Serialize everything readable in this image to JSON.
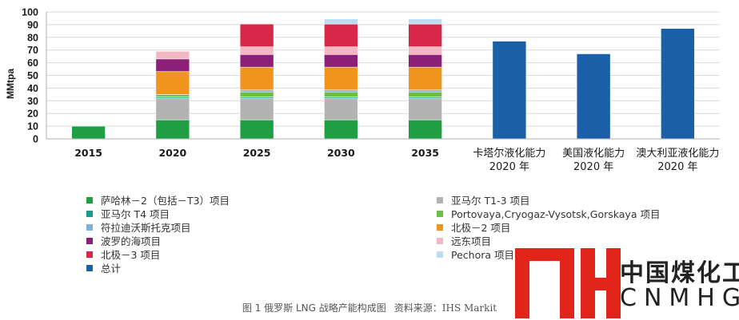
{
  "chart_data": {
    "type": "bar",
    "stacked": true,
    "ylabel": "MMtpa",
    "ylim": [
      0,
      100
    ],
    "yticks": [
      0,
      10,
      20,
      30,
      40,
      50,
      60,
      70,
      80,
      90,
      100
    ],
    "categories": [
      [
        "2015"
      ],
      [
        "2020"
      ],
      [
        "2025"
      ],
      [
        "2030"
      ],
      [
        "2035"
      ],
      [
        "卡塔尔液化能力",
        "2020 年"
      ],
      [
        "美国液化能力",
        "2020 年"
      ],
      [
        "澳大利亚液化能力",
        "2020 年"
      ]
    ],
    "series": [
      {
        "name": "萨哈林－2（包括－T3）项目",
        "color": "#1f9e44",
        "values": [
          10,
          15,
          15,
          15,
          15,
          0,
          0,
          0
        ]
      },
      {
        "name": "亚马尔 T1-3 项目",
        "color": "#b3b3b3",
        "values": [
          0,
          17,
          17,
          17,
          17,
          0,
          0,
          0
        ]
      },
      {
        "name": "亚马尔 T4 项目",
        "color": "#1a9a8c",
        "values": [
          0,
          1,
          1,
          1,
          1,
          0,
          0,
          0
        ]
      },
      {
        "name": "Portovaya,Cryogaz-Vysotsk,Gorskaya 项目",
        "color": "#6cbe45",
        "values": [
          0,
          2,
          4,
          4,
          4,
          0,
          0,
          0
        ]
      },
      {
        "name": "符拉迪沃斯托克项目",
        "color": "#7fb0dc",
        "values": [
          0,
          0,
          1.5,
          1.5,
          1.5,
          0,
          0,
          0
        ]
      },
      {
        "name": "北极－2 项目",
        "color": "#f0941e",
        "values": [
          0,
          18,
          18,
          18,
          18,
          0,
          0,
          0
        ]
      },
      {
        "name": "波罗的海项目",
        "color": "#8e1f78",
        "values": [
          0,
          10,
          10,
          10,
          10,
          0,
          0,
          0
        ]
      },
      {
        "name": "远东项目",
        "color": "#f4b6c0",
        "values": [
          0,
          6,
          6,
          6,
          6,
          0,
          0,
          0
        ]
      },
      {
        "name": "北极－3 项目",
        "color": "#d8284a",
        "values": [
          0,
          0,
          18,
          18,
          18,
          0,
          0,
          0
        ]
      },
      {
        "name": "Pechora 项目",
        "color": "#bcdcf0",
        "values": [
          0,
          0,
          0,
          4,
          4,
          0,
          0,
          0
        ]
      },
      {
        "name": "总计",
        "color": "#1b5fa8",
        "values": [
          0,
          0,
          0,
          0,
          0,
          77,
          67,
          87
        ]
      }
    ]
  },
  "legend": {
    "left": [
      {
        "label": "萨哈林－2（包括－T3）项目",
        "color": "#1f9e44"
      },
      {
        "label": "亚马尔 T4 项目",
        "color": "#1a9a8c"
      },
      {
        "label": "符拉迪沃斯托克项目",
        "color": "#7fb0dc"
      },
      {
        "label": "波罗的海项目",
        "color": "#8e1f78"
      },
      {
        "label": "北极－3 项目",
        "color": "#d8284a"
      },
      {
        "label": "总计",
        "color": "#1b5fa8"
      }
    ],
    "right": [
      {
        "label": "亚马尔 T1-3 项目",
        "color": "#b3b3b3"
      },
      {
        "label": "Portovaya,Cryogaz-Vysotsk,Gorskaya 项目",
        "color": "#6cbe45"
      },
      {
        "label": "北极－2 项目",
        "color": "#f0941e"
      },
      {
        "label": "远东项目",
        "color": "#f4b6c0"
      },
      {
        "label": "Pechora 项目",
        "color": "#bcdcf0"
      }
    ]
  },
  "caption": {
    "title": "图 1 俄罗斯 LNG 战略产能构成图",
    "source": "资料来源：IHS Markit"
  },
  "watermark": {
    "name_cn": "中国煤化工",
    "name_en": "CNMHG",
    "color": "#e1251b"
  }
}
